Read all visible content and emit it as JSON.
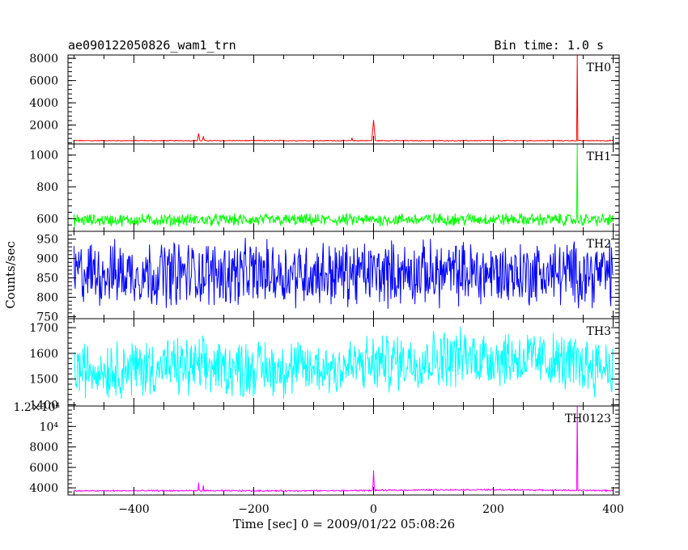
{
  "header": {
    "title": "ae090122050826_wam1_trn",
    "bin_time": "Bin time: 1.0 s"
  },
  "chart_data": {
    "type": "line",
    "title": "ae090122050826_wam1_trn",
    "xlabel": "Time [sec] 0 = 2009/01/22 05:08:26",
    "ylabel": "Counts/sec",
    "xlim": [
      -510,
      410
    ],
    "x_ticks": [
      -400,
      -200,
      0,
      200,
      400
    ],
    "x_tick_labels": [
      "−400",
      "−200",
      "0",
      "200",
      "400"
    ],
    "grid": false,
    "series": [
      {
        "name": "TH0",
        "color": "#ff0000",
        "ylim": [
          300,
          8300
        ],
        "y_ticks": [
          2000,
          4000,
          6000,
          8000
        ],
        "y_tick_labels": [
          "2000",
          "4000",
          "6000",
          "8000"
        ],
        "baseline": 600,
        "noise": 45,
        "trend": 0,
        "spikes": [
          {
            "x": -292,
            "y": 1250,
            "w": 1
          },
          {
            "x": -284,
            "y": 1000,
            "w": 1
          },
          {
            "x": -36,
            "y": 850,
            "w": 1
          },
          {
            "x": 0,
            "y": 2450,
            "w": 2
          },
          {
            "x": 340,
            "y": 8300,
            "w": 0
          }
        ]
      },
      {
        "name": "TH1",
        "color": "#00ff00",
        "ylim": [
          520,
          1070
        ],
        "y_ticks": [
          600,
          800,
          1000
        ],
        "y_tick_labels": [
          "600",
          "800",
          "1000"
        ],
        "baseline": 590,
        "noise": 45,
        "trend": 8,
        "spikes": [
          {
            "x": 340,
            "y": 1070,
            "w": 0
          }
        ]
      },
      {
        "name": "TH2",
        "color": "#0000ff",
        "ylim": [
          745,
          970
        ],
        "y_ticks": [
          750,
          800,
          850,
          900,
          950
        ],
        "y_tick_labels": [
          "750",
          "800",
          "850",
          "900",
          "950"
        ],
        "baseline": 862,
        "noise": 95,
        "trend": 0,
        "spikes": []
      },
      {
        "name": "TH3",
        "color": "#00ffff",
        "ylim": [
          1395,
          1735
        ],
        "y_ticks": [
          1400,
          1500,
          1600,
          1700
        ],
        "y_tick_labels": [
          "1400",
          "1500",
          "1600",
          "1700"
        ],
        "baseline": 1535,
        "noise": 130,
        "trend": 70,
        "spikes": []
      },
      {
        "name": "TH0123",
        "color": "#ff00ff",
        "ylim": [
          3300,
          12000
        ],
        "y_ticks": [
          4000,
          6000,
          8000,
          10000
        ],
        "y_tick_labels": [
          "4000",
          "6000",
          "8000",
          "10⁴"
        ],
        "y_top_label": "1.2×10⁴",
        "baseline": 3700,
        "noise": 80,
        "trend": 150,
        "spikes": [
          {
            "x": -292,
            "y": 4500,
            "w": 1
          },
          {
            "x": -284,
            "y": 4250,
            "w": 1
          },
          {
            "x": 0,
            "y": 5700,
            "w": 2
          },
          {
            "x": 340,
            "y": 12000,
            "w": 0
          }
        ]
      }
    ]
  }
}
